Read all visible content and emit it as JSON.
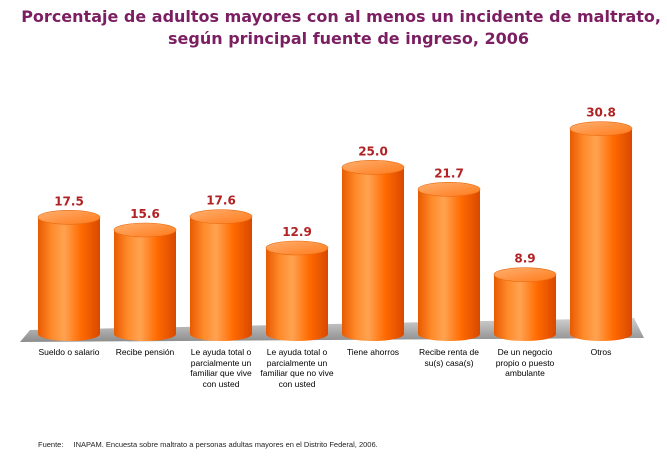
{
  "title_line1": "Porcentaje de adultos mayores con al menos un incidente de maltrato,",
  "title_line2": "según principal fuente de ingreso, 2006",
  "source": {
    "label": "Fuente:",
    "text": "INAPAM. Encuesta sobre maltrato a personas adultas mayores en el Distrito Federal, 2006."
  },
  "colors": {
    "bar": "#ff6a00",
    "bar_dark": "#d94800",
    "bar_light": "#ffb070",
    "value_label": "#b22222",
    "title": "#7b1f62",
    "floor": "#8c8c8c"
  },
  "chart_data": {
    "type": "bar",
    "title": "Porcentaje de adultos mayores con al menos un incidente de maltrato, según principal fuente de ingreso, 2006",
    "xlabel": "",
    "ylabel": "",
    "ylim": [
      0,
      33
    ],
    "grid": false,
    "legend": "none",
    "categories": [
      "Sueldo o salario",
      "Recibe pensión",
      "Le ayuda total o parcialmente un familiar que vive con usted",
      "Le ayuda total o parcialmente un familiar que no vive con usted",
      "Tiene ahorros",
      "Recibe renta de su(s) casa(s)",
      "De un negocio propio o puesto ambulante",
      "Otros"
    ],
    "values": [
      17.5,
      15.6,
      17.6,
      12.9,
      25.0,
      21.7,
      8.9,
      30.8
    ],
    "value_labels": [
      "17.5",
      "15.6",
      "17.6",
      "12.9",
      "25.0",
      "21.7",
      "8.9",
      "30.8"
    ]
  }
}
